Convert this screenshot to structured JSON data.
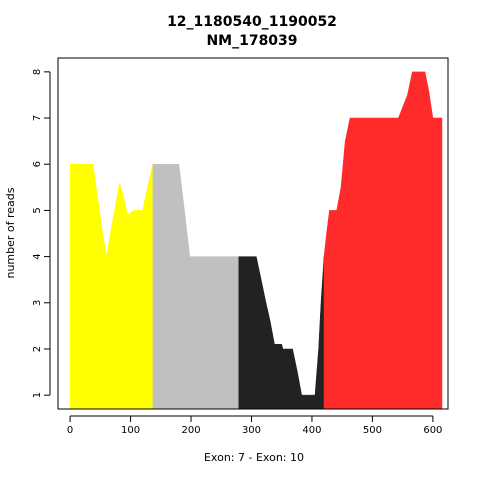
{
  "chart_data": {
    "type": "area",
    "title": "12_1180540_1190052",
    "subtitle": "NM_178039",
    "xlabel": "Exon: 7 - Exon: 10",
    "ylabel": "number of reads",
    "xlim": [
      -20,
      625
    ],
    "ylim": [
      0.7,
      8.3
    ],
    "x_ticks": [
      0,
      100,
      200,
      300,
      400,
      500,
      600
    ],
    "y_ticks": [
      1,
      2,
      3,
      4,
      5,
      6,
      7,
      8
    ],
    "grid": false,
    "series": [
      {
        "color": "#ffff00",
        "points": [
          [
            0,
            6
          ],
          [
            15,
            6
          ],
          [
            38,
            6
          ],
          [
            43,
            5.5
          ],
          [
            53,
            4.6
          ],
          [
            60,
            4
          ],
          [
            68,
            4.6
          ],
          [
            75,
            5.1
          ],
          [
            82,
            5.6
          ],
          [
            90,
            5.2
          ],
          [
            95,
            4.9
          ],
          [
            105,
            5
          ],
          [
            120,
            5
          ],
          [
            128,
            5.5
          ],
          [
            137,
            6
          ]
        ]
      },
      {
        "color": "#c0c0c0",
        "points": [
          [
            137,
            6
          ],
          [
            150,
            6
          ],
          [
            180,
            6
          ],
          [
            190,
            4.9
          ],
          [
            198,
            4
          ],
          [
            215,
            4
          ],
          [
            279,
            4
          ]
        ]
      },
      {
        "color": "#222222",
        "points": [
          [
            279,
            4
          ],
          [
            308,
            4
          ],
          [
            316,
            3.5
          ],
          [
            324,
            3
          ],
          [
            331,
            2.6
          ],
          [
            338,
            2.1
          ],
          [
            350,
            2.1
          ],
          [
            352,
            2
          ],
          [
            368,
            2
          ],
          [
            376,
            1.5
          ],
          [
            383,
            1
          ],
          [
            395,
            1
          ],
          [
            405,
            1
          ],
          [
            411,
            2
          ],
          [
            415,
            3
          ],
          [
            420,
            4
          ]
        ]
      },
      {
        "color": "#ff2a2a",
        "points": [
          [
            420,
            4
          ],
          [
            425,
            4.6
          ],
          [
            429,
            5
          ],
          [
            441,
            5
          ],
          [
            448,
            5.5
          ],
          [
            455,
            6.5
          ],
          [
            463,
            7
          ],
          [
            500,
            7
          ],
          [
            543,
            7
          ],
          [
            558,
            7.5
          ],
          [
            566,
            8
          ],
          [
            587,
            8
          ],
          [
            593,
            7.6
          ],
          [
            600,
            7
          ],
          [
            615,
            7
          ]
        ]
      }
    ]
  }
}
